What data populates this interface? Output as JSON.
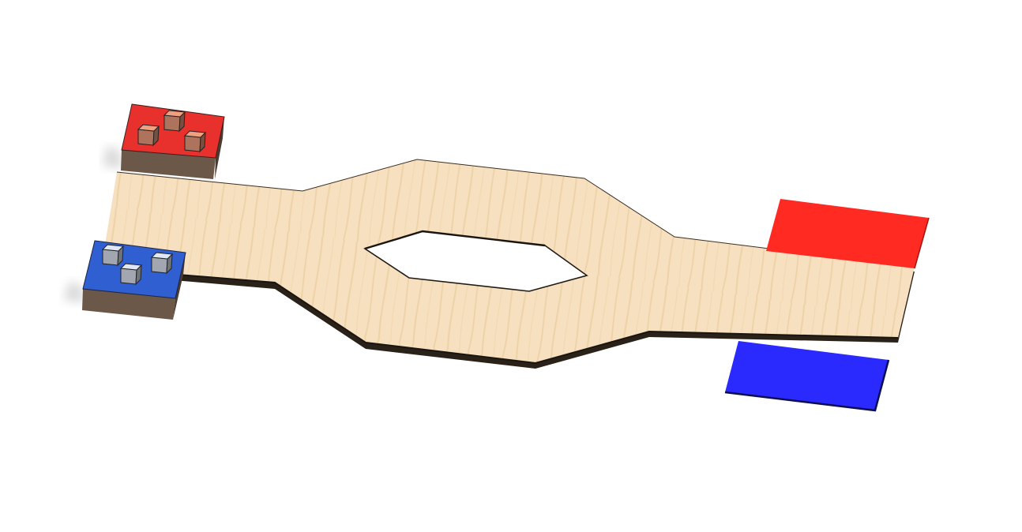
{
  "scene": {
    "type": "3d-board-render",
    "background": "#ffffff",
    "board": {
      "material": "light-wood",
      "color": "#f6e0c0",
      "grain_color": "#e8c896",
      "edge_color": "#2a2118",
      "has_center_hole": true
    },
    "start_zones": [
      {
        "team": "red",
        "color": "#e8302c",
        "piece_color": "#f0a080",
        "piece_count": 3
      },
      {
        "team": "blue",
        "color": "#2f5fd0",
        "piece_color": "#dfe6f4",
        "piece_count": 3
      }
    ],
    "goal_zones": [
      {
        "team": "red",
        "color": "#ff2a22"
      },
      {
        "team": "blue",
        "color": "#2a2aff"
      }
    ]
  }
}
